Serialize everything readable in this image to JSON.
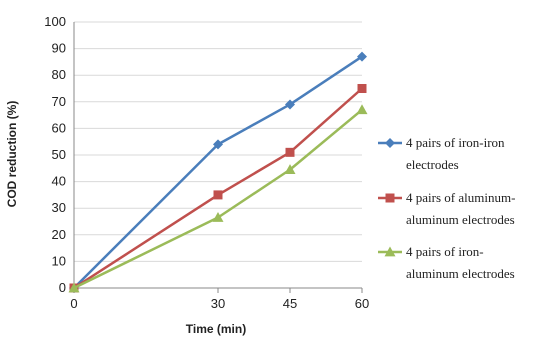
{
  "chart_data": {
    "type": "line",
    "xlabel": "Time (min)",
    "ylabel": "COD reduction (%)",
    "x": [
      0,
      30,
      45,
      60
    ],
    "x_ticks": [
      "0",
      "30",
      "45",
      "60"
    ],
    "ylim": [
      0,
      100
    ],
    "y_ticks": [
      "0",
      "10",
      "20",
      "30",
      "40",
      "50",
      "60",
      "70",
      "80",
      "90",
      "100"
    ],
    "grid": "horizontal",
    "legend_position": "right",
    "series": [
      {
        "name": "4 pairs of iron-iron electrodes",
        "legend_lines": [
          "4 pairs of iron-iron",
          "electrodes"
        ],
        "values": [
          0,
          54,
          69,
          87
        ],
        "color": "#4a7ebb",
        "marker": "diamond"
      },
      {
        "name": "4 pairs of aluminum-aluminum electrodes",
        "legend_lines": [
          "4 pairs of aluminum-",
          "aluminum electrodes"
        ],
        "values": [
          0,
          35,
          51,
          75
        ],
        "color": "#c0504d",
        "marker": "square"
      },
      {
        "name": "4 pairs of iron-aluminum electrodes",
        "legend_lines": [
          "4 pairs of iron-",
          "aluminum electrodes"
        ],
        "values": [
          0,
          26.5,
          44.5,
          67
        ],
        "color": "#9bbb59",
        "marker": "triangle"
      }
    ]
  }
}
